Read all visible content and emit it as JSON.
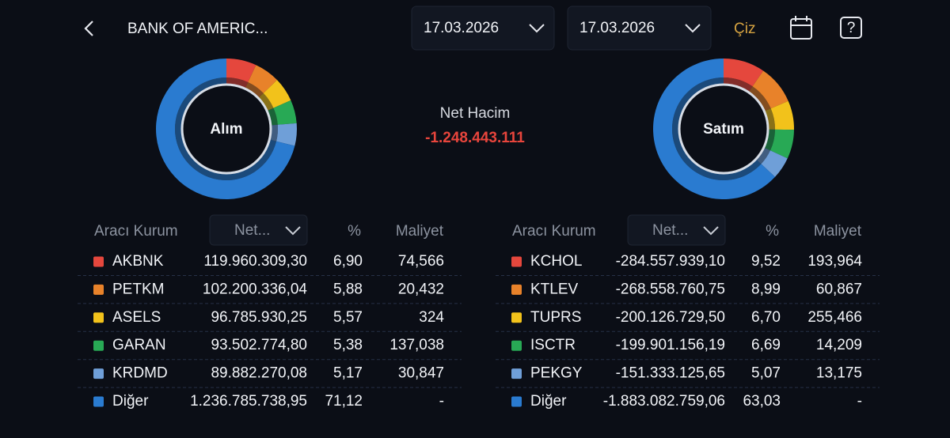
{
  "header": {
    "title": "BANK OF AMERIC...",
    "date_from": "17.03.2026",
    "date_to": "17.03.2026",
    "draw_button": "Çiz"
  },
  "summary": {
    "label": "Net Hacim",
    "value": "-1.248.443.111"
  },
  "panels": [
    {
      "chart_label": "Alım",
      "table": {
        "columns": [
          "Aracı Kurum",
          "Net...",
          "%",
          "Maliyet"
        ],
        "rows": [
          {
            "name": "AKBNK",
            "color": "#e5473d",
            "net": "119.960.309,30",
            "percent": {
              "value": 6.9,
              "label": "6,90"
            },
            "cost": "74,566"
          },
          {
            "name": "PETKM",
            "color": "#e8822a",
            "net": "102.200.336,04",
            "percent": {
              "value": 5.88,
              "label": "5,88"
            },
            "cost": "20,432"
          },
          {
            "name": "ASELS",
            "color": "#f2c21b",
            "net": "96.785.930,25",
            "percent": {
              "value": 5.57,
              "label": "5,57"
            },
            "cost": "324"
          },
          {
            "name": "GARAN",
            "color": "#28a955",
            "net": "93.502.774,80",
            "percent": {
              "value": 5.38,
              "label": "5,38"
            },
            "cost": "137,038"
          },
          {
            "name": "KRDMD",
            "color": "#6f9fd8",
            "net": "89.882.270,08",
            "percent": {
              "value": 5.17,
              "label": "5,17"
            },
            "cost": "30,847"
          },
          {
            "name": "Diğer",
            "color": "#2a7bd0",
            "net": "1.236.785.738,95",
            "percent": {
              "value": 71.12,
              "label": "71,12"
            },
            "cost": "-"
          }
        ]
      }
    },
    {
      "chart_label": "Satım",
      "table": {
        "columns": [
          "Aracı Kurum",
          "Net...",
          "%",
          "Maliyet"
        ],
        "rows": [
          {
            "name": "KCHOL",
            "color": "#e5473d",
            "net": "-284.557.939,10",
            "percent": {
              "value": 9.52,
              "label": "9,52"
            },
            "cost": "193,964"
          },
          {
            "name": "KTLEV",
            "color": "#e8822a",
            "net": "-268.558.760,75",
            "percent": {
              "value": 8.99,
              "label": "8,99"
            },
            "cost": "60,867"
          },
          {
            "name": "TUPRS",
            "color": "#f2c21b",
            "net": "-200.126.729,50",
            "percent": {
              "value": 6.7,
              "label": "6,70"
            },
            "cost": "255,466"
          },
          {
            "name": "ISCTR",
            "color": "#28a955",
            "net": "-199.901.156,19",
            "percent": {
              "value": 6.69,
              "label": "6,69"
            },
            "cost": "14,209"
          },
          {
            "name": "PEKGY",
            "color": "#6f9fd8",
            "net": "-151.333.125,65",
            "percent": {
              "value": 5.07,
              "label": "5,07"
            },
            "cost": "13,175"
          },
          {
            "name": "Diğer",
            "color": "#2a7bd0",
            "net": "-1.883.082.759,06",
            "percent": {
              "value": 63.03,
              "label": "63,03"
            },
            "cost": "-"
          }
        ]
      }
    }
  ]
}
